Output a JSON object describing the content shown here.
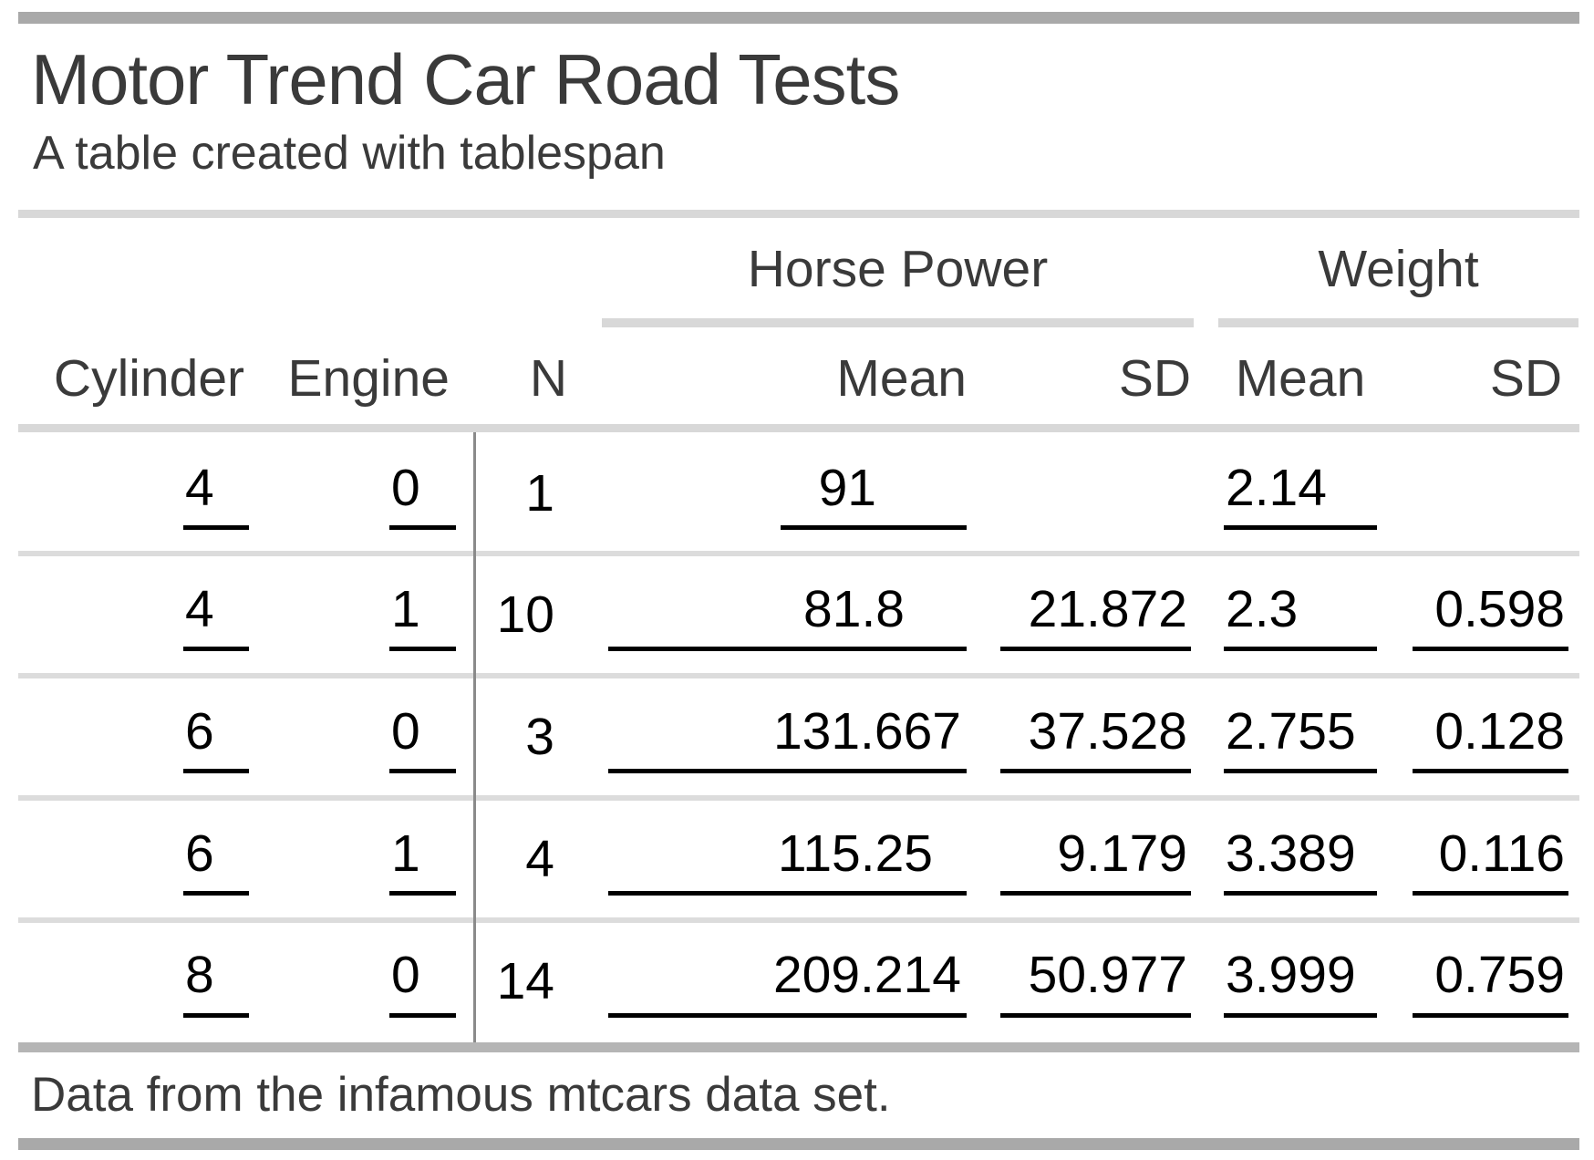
{
  "table": {
    "title": "Motor Trend Car Road Tests",
    "subtitle": "A table created with tablespan",
    "footnote": "Data from the infamous mtcars data set.",
    "spanners": {
      "horse_power": "Horse Power",
      "weight": "Weight"
    },
    "columns": {
      "cylinder": "Cylinder",
      "engine": "Engine",
      "n": "N",
      "hp_mean": "Mean",
      "hp_sd": "SD",
      "wt_mean": "Mean",
      "wt_sd": "SD"
    },
    "rows": [
      {
        "cylinder": "4",
        "engine": "0",
        "n": "1",
        "hp_mean": "91",
        "hp_sd": "",
        "wt_mean": "2.14",
        "wt_sd": ""
      },
      {
        "cylinder": "4",
        "engine": "1",
        "n": "10",
        "hp_mean": "81.8",
        "hp_sd": "21.872",
        "wt_mean": "2.3",
        "wt_sd": "0.598"
      },
      {
        "cylinder": "6",
        "engine": "0",
        "n": "3",
        "hp_mean": "131.667",
        "hp_sd": "37.528",
        "wt_mean": "2.755",
        "wt_sd": "0.128"
      },
      {
        "cylinder": "6",
        "engine": "1",
        "n": "4",
        "hp_mean": "115.25",
        "hp_sd": "9.179",
        "wt_mean": "3.389",
        "wt_sd": "0.116"
      },
      {
        "cylinder": "8",
        "engine": "0",
        "n": "14",
        "hp_mean": "209.214",
        "hp_sd": "50.977",
        "wt_mean": "3.999",
        "wt_sd": "0.759"
      }
    ]
  },
  "colors": {
    "heavy_bar": "#a9a9a9",
    "light_rule": "#d8d8d8",
    "row_rule": "#dcdcdc",
    "footer_rule": "#b5b5b5",
    "vertical_divider": "#8a8a8a",
    "heading_text": "#3a3a3a",
    "data_text": "#000000",
    "value_underline": "#000000",
    "background": "#ffffff"
  },
  "chart_data": {
    "type": "table",
    "title": "Motor Trend Car Road Tests",
    "subtitle": "A table created with tablespan",
    "footnote": "Data from the infamous mtcars data set.",
    "column_spanners": [
      {
        "label": "Horse Power",
        "columns": [
          "Mean",
          "SD"
        ]
      },
      {
        "label": "Weight",
        "columns": [
          "Mean",
          "SD"
        ]
      }
    ],
    "columns": [
      "Cylinder",
      "Engine",
      "N",
      "Horse Power Mean",
      "Horse Power SD",
      "Weight Mean",
      "Weight SD"
    ],
    "rows": [
      [
        4,
        0,
        1,
        91,
        null,
        2.14,
        null
      ],
      [
        4,
        1,
        10,
        81.8,
        21.872,
        2.3,
        0.598
      ],
      [
        6,
        0,
        3,
        131.667,
        37.528,
        2.755,
        0.128
      ],
      [
        6,
        1,
        4,
        115.25,
        9.179,
        3.389,
        0.116
      ],
      [
        8,
        0,
        14,
        209.214,
        50.977,
        3.999,
        0.759
      ]
    ]
  }
}
